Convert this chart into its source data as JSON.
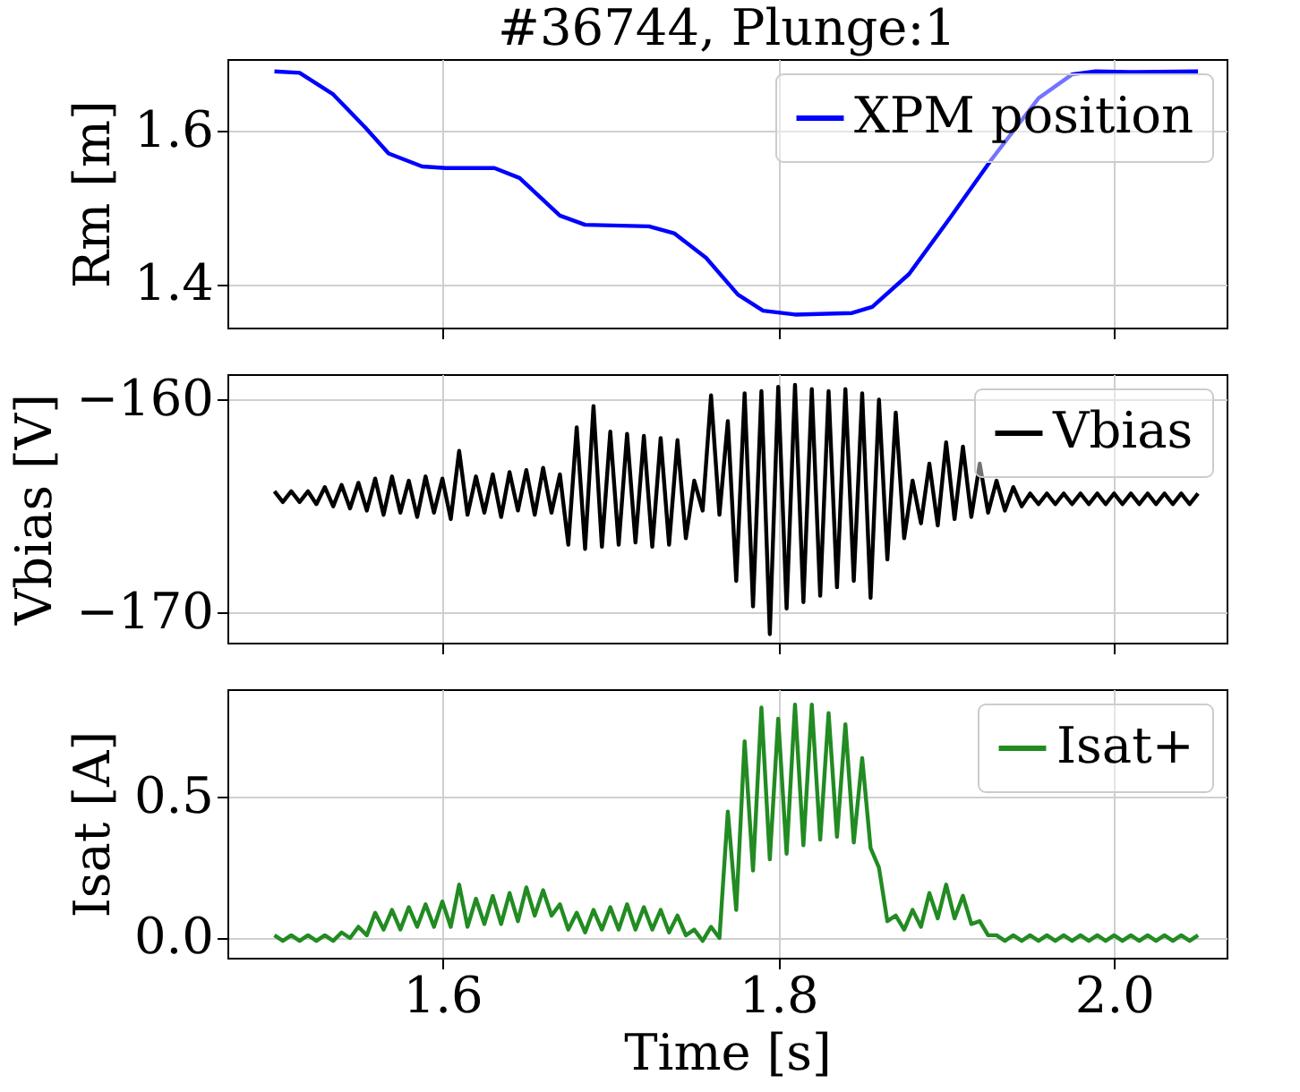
{
  "chart_data": [
    {
      "type": "line",
      "title": "#36744, Plunge:1",
      "ylabel": "Rm [m]",
      "xlim": [
        1.472,
        2.067
      ],
      "xticks": [
        1.6,
        1.8,
        2.0
      ],
      "ylim": [
        1.344,
        1.694
      ],
      "yticks": [
        {
          "value": 1.4,
          "label": "1.4"
        },
        {
          "value": 1.6,
          "label": "1.6"
        }
      ],
      "grid": true,
      "legend": "top right",
      "tick_labels": "y",
      "x": [
        1.5,
        1.515,
        1.535,
        1.554,
        1.568,
        1.588,
        1.602,
        1.631,
        1.646,
        1.67,
        1.685,
        1.723,
        1.738,
        1.757,
        1.776,
        1.791,
        1.81,
        1.844,
        1.856,
        1.878,
        1.902,
        1.927,
        1.955,
        1.975,
        1.989,
        2.009,
        2.05
      ],
      "series": [
        {
          "name": "XPM position",
          "color": "#0000ff",
          "values": [
            1.678,
            1.676,
            1.648,
            1.605,
            1.571,
            1.554,
            1.552,
            1.552,
            1.539,
            1.49,
            1.478,
            1.476,
            1.467,
            1.435,
            1.387,
            1.366,
            1.361,
            1.363,
            1.371,
            1.414,
            1.486,
            1.563,
            1.643,
            1.674,
            1.678,
            1.677,
            1.678
          ]
        }
      ]
    },
    {
      "type": "line",
      "ylabel": "Vbias [V]",
      "xlim": [
        1.472,
        2.067
      ],
      "xticks": [
        1.6,
        1.8,
        2.0
      ],
      "ylim": [
        -171.4,
        -158.8
      ],
      "yticks": [
        -170,
        -160
      ],
      "grid": true,
      "legend": "top right",
      "tick_labels": "y",
      "x": [
        1.5,
        1.505,
        1.51,
        1.515,
        1.52,
        1.525,
        1.53,
        1.535,
        1.54,
        1.545,
        1.55,
        1.555,
        1.56,
        1.565,
        1.57,
        1.575,
        1.58,
        1.585,
        1.59,
        1.595,
        1.6,
        1.605,
        1.61,
        1.615,
        1.62,
        1.625,
        1.63,
        1.635,
        1.64,
        1.645,
        1.65,
        1.655,
        1.66,
        1.665,
        1.67,
        1.675,
        1.68,
        1.685,
        1.69,
        1.695,
        1.7,
        1.705,
        1.71,
        1.715,
        1.72,
        1.725,
        1.73,
        1.735,
        1.74,
        1.745,
        1.75,
        1.755,
        1.76,
        1.765,
        1.77,
        1.775,
        1.78,
        1.785,
        1.79,
        1.795,
        1.8,
        1.805,
        1.81,
        1.815,
        1.82,
        1.825,
        1.83,
        1.835,
        1.84,
        1.845,
        1.85,
        1.855,
        1.86,
        1.865,
        1.87,
        1.875,
        1.88,
        1.885,
        1.89,
        1.895,
        1.9,
        1.905,
        1.91,
        1.915,
        1.92,
        1.925,
        1.93,
        1.935,
        1.94,
        1.945,
        1.95,
        1.955,
        1.96,
        1.965,
        1.97,
        1.975,
        1.98,
        1.985,
        1.99,
        1.995,
        2.0,
        2.005,
        2.01,
        2.015,
        2.02,
        2.025,
        2.03,
        2.035,
        2.04,
        2.045,
        2.05
      ],
      "series": [
        {
          "name": "Vbias",
          "color": "#000000",
          "values": [
            -164.3,
            -164.8,
            -164.3,
            -164.8,
            -164.3,
            -164.9,
            -164.1,
            -165.0,
            -164.0,
            -165.1,
            -163.9,
            -165.2,
            -163.7,
            -165.4,
            -163.6,
            -165.3,
            -163.8,
            -165.5,
            -163.6,
            -165.3,
            -163.7,
            -165.6,
            -162.4,
            -165.4,
            -163.6,
            -165.3,
            -163.5,
            -165.5,
            -163.4,
            -165.2,
            -163.3,
            -165.4,
            -163.2,
            -165.3,
            -163.5,
            -166.8,
            -161.3,
            -167.0,
            -160.3,
            -166.9,
            -161.5,
            -166.8,
            -161.6,
            -166.7,
            -161.7,
            -166.9,
            -161.8,
            -166.8,
            -161.9,
            -166.5,
            -163.8,
            -165.2,
            -159.8,
            -165.4,
            -161.0,
            -168.5,
            -159.7,
            -169.7,
            -159.6,
            -171.0,
            -159.4,
            -169.8,
            -159.3,
            -169.5,
            -159.5,
            -169.2,
            -159.6,
            -168.8,
            -159.5,
            -168.5,
            -159.7,
            -169.3,
            -160.0,
            -167.5,
            -160.6,
            -166.5,
            -163.8,
            -165.8,
            -163.0,
            -165.9,
            -162.0,
            -165.6,
            -162.2,
            -165.5,
            -163.0,
            -165.3,
            -163.8,
            -165.2,
            -164.1,
            -165.0,
            -164.4,
            -164.9,
            -164.4,
            -164.9,
            -164.4,
            -164.9,
            -164.4,
            -164.9,
            -164.4,
            -164.9,
            -164.4,
            -164.9,
            -164.4,
            -164.9,
            -164.4,
            -164.9,
            -164.4,
            -164.9,
            -164.4,
            -164.9,
            -164.4
          ]
        }
      ]
    },
    {
      "type": "line",
      "ylabel": "Isat [A]",
      "xlabel": "Time [s]",
      "xlim": [
        1.472,
        2.067
      ],
      "xticks": [
        {
          "value": 1.6,
          "label": "1.6"
        },
        {
          "value": 1.8,
          "label": "1.8"
        },
        {
          "value": 2.0,
          "label": "2.0"
        }
      ],
      "ylim": [
        -0.07,
        0.885
      ],
      "yticks": [
        {
          "value": 0,
          "label": "0.0"
        },
        {
          "value": 0.5,
          "label": "0.5"
        }
      ],
      "grid": true,
      "legend": "top right",
      "x": [
        1.5,
        1.505,
        1.51,
        1.515,
        1.52,
        1.525,
        1.53,
        1.535,
        1.54,
        1.545,
        1.55,
        1.555,
        1.56,
        1.565,
        1.57,
        1.575,
        1.58,
        1.585,
        1.59,
        1.595,
        1.6,
        1.605,
        1.61,
        1.615,
        1.62,
        1.625,
        1.63,
        1.635,
        1.64,
        1.645,
        1.65,
        1.655,
        1.66,
        1.665,
        1.67,
        1.675,
        1.68,
        1.685,
        1.69,
        1.695,
        1.7,
        1.705,
        1.71,
        1.715,
        1.72,
        1.725,
        1.73,
        1.735,
        1.74,
        1.745,
        1.75,
        1.755,
        1.76,
        1.765,
        1.77,
        1.775,
        1.78,
        1.785,
        1.79,
        1.795,
        1.8,
        1.805,
        1.81,
        1.815,
        1.82,
        1.825,
        1.83,
        1.835,
        1.84,
        1.845,
        1.85,
        1.855,
        1.86,
        1.865,
        1.87,
        1.875,
        1.88,
        1.885,
        1.89,
        1.895,
        1.9,
        1.905,
        1.91,
        1.915,
        1.92,
        1.925,
        1.93,
        1.935,
        1.94,
        1.945,
        1.95,
        1.955,
        1.96,
        1.965,
        1.97,
        1.975,
        1.98,
        1.985,
        1.99,
        1.995,
        2.0,
        2.005,
        2.01,
        2.015,
        2.02,
        2.025,
        2.03,
        2.035,
        2.04,
        2.045,
        2.05
      ],
      "series": [
        {
          "name": "Isat+",
          "color": "#228b22",
          "values": [
            0.01,
            -0.01,
            0.01,
            -0.01,
            0.01,
            -0.01,
            0.01,
            -0.01,
            0.02,
            0.0,
            0.04,
            0.01,
            0.09,
            0.03,
            0.1,
            0.03,
            0.11,
            0.04,
            0.12,
            0.04,
            0.13,
            0.04,
            0.19,
            0.04,
            0.14,
            0.05,
            0.15,
            0.05,
            0.16,
            0.06,
            0.18,
            0.08,
            0.17,
            0.08,
            0.12,
            0.03,
            0.09,
            0.02,
            0.1,
            0.03,
            0.11,
            0.03,
            0.12,
            0.03,
            0.11,
            0.03,
            0.1,
            0.02,
            0.08,
            0.01,
            0.03,
            -0.01,
            0.04,
            0.0,
            0.45,
            0.1,
            0.7,
            0.24,
            0.82,
            0.28,
            0.78,
            0.3,
            0.83,
            0.33,
            0.83,
            0.35,
            0.8,
            0.36,
            0.76,
            0.34,
            0.64,
            0.32,
            0.25,
            0.06,
            0.08,
            0.03,
            0.1,
            0.04,
            0.16,
            0.07,
            0.19,
            0.07,
            0.15,
            0.05,
            0.06,
            0.01,
            0.01,
            -0.01,
            0.01,
            -0.01,
            0.01,
            -0.01,
            0.01,
            -0.01,
            0.01,
            -0.01,
            0.01,
            -0.01,
            0.01,
            -0.01,
            0.01,
            -0.01,
            0.01,
            -0.01,
            0.01,
            -0.01,
            0.01,
            -0.01,
            0.01,
            -0.01,
            0.01
          ]
        }
      ]
    }
  ]
}
